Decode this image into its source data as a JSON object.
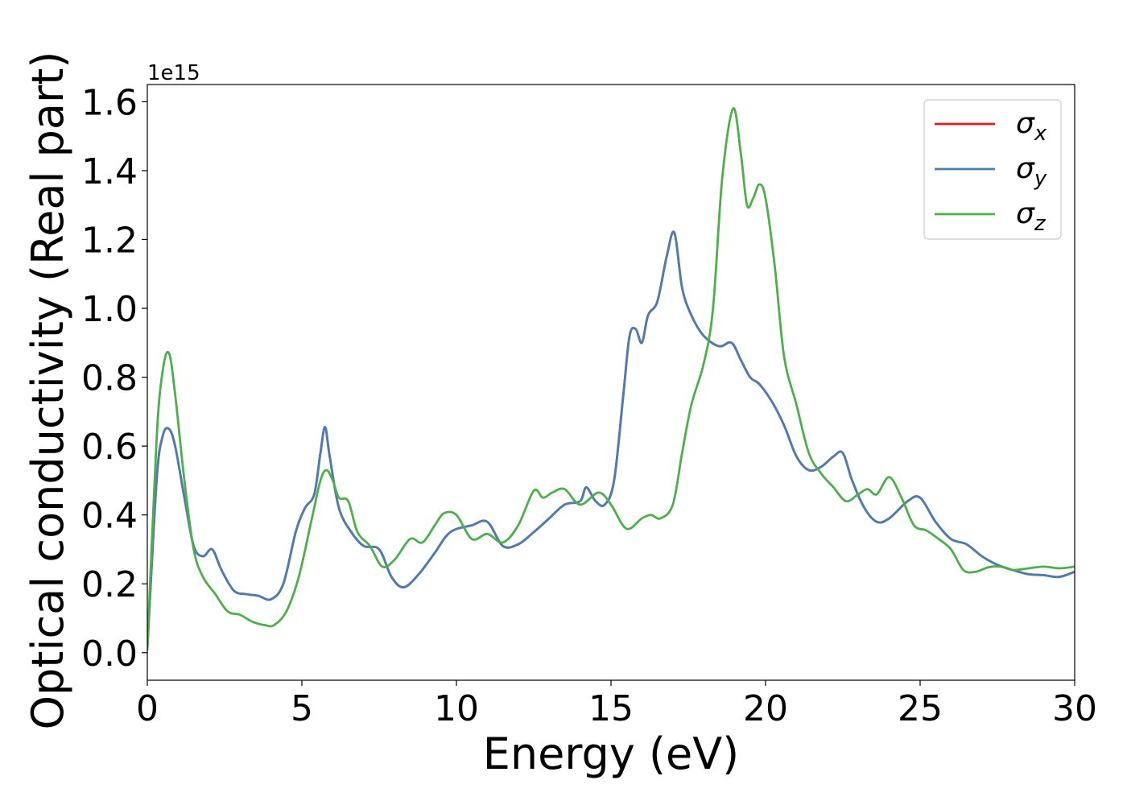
{
  "chart_data": {
    "type": "line",
    "title": "",
    "xlabel": "Energy (eV)",
    "ylabel": "Optical conductivity (Real part)",
    "y_scale_label": "1e15",
    "xlim": [
      0,
      30
    ],
    "ylim": [
      -0.08,
      1.65
    ],
    "xticks": [
      0,
      5,
      10,
      15,
      20,
      25,
      30
    ],
    "xtick_labels": [
      "0",
      "5",
      "10",
      "15",
      "20",
      "25",
      "30"
    ],
    "yticks": [
      0.0,
      0.2,
      0.4,
      0.6,
      0.8,
      1.0,
      1.2,
      1.4,
      1.6
    ],
    "ytick_labels": [
      "0.0",
      "0.2",
      "0.4",
      "0.6",
      "0.8",
      "1.0",
      "1.2",
      "1.4",
      "1.6"
    ],
    "grid": false,
    "legend_position": "top-right",
    "series": [
      {
        "name": "σx",
        "legend_base": "σ",
        "legend_sub": "x",
        "color": "#e41a1c",
        "x": [
          0,
          0.3,
          0.5,
          0.7,
          0.9,
          1.2,
          1.5,
          1.8,
          2.1,
          2.4,
          2.8,
          3.2,
          3.6,
          4.0,
          4.4,
          4.8,
          5.1,
          5.4,
          5.6,
          5.75,
          5.9,
          6.2,
          6.6,
          7.0,
          7.5,
          7.9,
          8.3,
          8.8,
          9.3,
          9.8,
          10.5,
          11.0,
          11.5,
          12.0,
          12.5,
          13.0,
          13.5,
          14.0,
          14.2,
          14.5,
          14.8,
          15.1,
          15.4,
          15.6,
          15.8,
          16.0,
          16.2,
          16.5,
          16.8,
          17.05,
          17.3,
          17.6,
          18.0,
          18.5,
          18.9,
          19.2,
          19.5,
          19.8,
          20.2,
          20.6,
          21.0,
          21.4,
          21.8,
          22.2,
          22.5,
          22.8,
          23.2,
          23.6,
          24.0,
          24.6,
          25.0,
          25.5,
          26.0,
          26.5,
          27.0,
          27.5,
          28.0,
          28.5,
          29.0,
          29.5,
          30.0
        ],
        "values": [
          0.01,
          0.5,
          0.63,
          0.65,
          0.6,
          0.45,
          0.31,
          0.28,
          0.3,
          0.24,
          0.18,
          0.17,
          0.165,
          0.155,
          0.2,
          0.35,
          0.42,
          0.46,
          0.58,
          0.655,
          0.57,
          0.42,
          0.35,
          0.31,
          0.3,
          0.22,
          0.19,
          0.23,
          0.29,
          0.35,
          0.37,
          0.38,
          0.31,
          0.315,
          0.35,
          0.39,
          0.43,
          0.44,
          0.48,
          0.44,
          0.43,
          0.5,
          0.75,
          0.92,
          0.94,
          0.9,
          0.98,
          1.02,
          1.15,
          1.22,
          1.06,
          0.98,
          0.92,
          0.89,
          0.9,
          0.85,
          0.8,
          0.78,
          0.73,
          0.66,
          0.57,
          0.53,
          0.54,
          0.57,
          0.58,
          0.5,
          0.42,
          0.38,
          0.39,
          0.44,
          0.45,
          0.38,
          0.33,
          0.315,
          0.28,
          0.255,
          0.24,
          0.228,
          0.225,
          0.22,
          0.235
        ]
      },
      {
        "name": "σy",
        "legend_base": "σ",
        "legend_sub": "y",
        "color": "#4a7db3",
        "x": [
          0,
          0.3,
          0.5,
          0.7,
          0.9,
          1.2,
          1.5,
          1.8,
          2.1,
          2.4,
          2.8,
          3.2,
          3.6,
          4.0,
          4.4,
          4.8,
          5.1,
          5.4,
          5.6,
          5.75,
          5.9,
          6.2,
          6.6,
          7.0,
          7.5,
          7.9,
          8.3,
          8.8,
          9.3,
          9.8,
          10.5,
          11.0,
          11.5,
          12.0,
          12.5,
          13.0,
          13.5,
          14.0,
          14.2,
          14.5,
          14.8,
          15.1,
          15.4,
          15.6,
          15.8,
          16.0,
          16.2,
          16.5,
          16.8,
          17.05,
          17.3,
          17.6,
          18.0,
          18.5,
          18.9,
          19.2,
          19.5,
          19.8,
          20.2,
          20.6,
          21.0,
          21.4,
          21.8,
          22.2,
          22.5,
          22.8,
          23.2,
          23.6,
          24.0,
          24.6,
          25.0,
          25.5,
          26.0,
          26.5,
          27.0,
          27.5,
          28.0,
          28.5,
          29.0,
          29.5,
          30.0
        ],
        "values": [
          0.01,
          0.5,
          0.63,
          0.65,
          0.6,
          0.45,
          0.31,
          0.28,
          0.3,
          0.24,
          0.18,
          0.17,
          0.165,
          0.155,
          0.2,
          0.35,
          0.42,
          0.46,
          0.58,
          0.655,
          0.57,
          0.42,
          0.35,
          0.31,
          0.3,
          0.22,
          0.19,
          0.23,
          0.29,
          0.35,
          0.37,
          0.38,
          0.31,
          0.315,
          0.35,
          0.39,
          0.43,
          0.44,
          0.48,
          0.44,
          0.43,
          0.5,
          0.75,
          0.92,
          0.94,
          0.9,
          0.98,
          1.02,
          1.15,
          1.22,
          1.06,
          0.98,
          0.92,
          0.89,
          0.9,
          0.85,
          0.8,
          0.78,
          0.73,
          0.66,
          0.57,
          0.53,
          0.54,
          0.57,
          0.58,
          0.5,
          0.42,
          0.38,
          0.39,
          0.44,
          0.45,
          0.38,
          0.33,
          0.315,
          0.28,
          0.255,
          0.24,
          0.228,
          0.225,
          0.22,
          0.235
        ]
      },
      {
        "name": "σz",
        "legend_base": "σ",
        "legend_sub": "z",
        "color": "#4daf4a",
        "x": [
          0,
          0.3,
          0.5,
          0.7,
          0.9,
          1.2,
          1.5,
          1.8,
          2.2,
          2.6,
          3.0,
          3.4,
          3.8,
          4.1,
          4.5,
          4.9,
          5.3,
          5.6,
          5.8,
          6.0,
          6.2,
          6.5,
          6.8,
          7.2,
          7.6,
          8.0,
          8.5,
          8.9,
          9.3,
          9.6,
          10.0,
          10.5,
          11.0,
          11.5,
          12.0,
          12.5,
          12.8,
          13.1,
          13.5,
          14.0,
          14.6,
          15.0,
          15.5,
          16.0,
          16.3,
          16.6,
          17.0,
          17.3,
          17.6,
          18.0,
          18.3,
          18.6,
          18.95,
          19.2,
          19.4,
          19.6,
          19.8,
          20.0,
          20.3,
          20.6,
          21.0,
          21.4,
          21.8,
          22.2,
          22.6,
          23.0,
          23.3,
          23.6,
          24.0,
          24.4,
          24.8,
          25.2,
          25.6,
          26.0,
          26.4,
          26.8,
          27.2,
          27.6,
          28.0,
          28.5,
          29.0,
          29.5,
          30.0
        ],
        "values": [
          0.01,
          0.62,
          0.82,
          0.87,
          0.75,
          0.5,
          0.3,
          0.22,
          0.17,
          0.12,
          0.11,
          0.09,
          0.08,
          0.08,
          0.12,
          0.22,
          0.38,
          0.5,
          0.53,
          0.5,
          0.45,
          0.44,
          0.35,
          0.31,
          0.25,
          0.27,
          0.33,
          0.32,
          0.37,
          0.405,
          0.4,
          0.33,
          0.345,
          0.32,
          0.37,
          0.47,
          0.45,
          0.465,
          0.475,
          0.43,
          0.465,
          0.43,
          0.36,
          0.39,
          0.4,
          0.39,
          0.43,
          0.58,
          0.72,
          0.84,
          1.0,
          1.38,
          1.58,
          1.45,
          1.3,
          1.32,
          1.36,
          1.32,
          1.12,
          0.86,
          0.72,
          0.58,
          0.52,
          0.48,
          0.44,
          0.46,
          0.475,
          0.46,
          0.51,
          0.45,
          0.37,
          0.355,
          0.33,
          0.3,
          0.24,
          0.235,
          0.248,
          0.25,
          0.24,
          0.245,
          0.25,
          0.245,
          0.25
        ]
      }
    ]
  }
}
